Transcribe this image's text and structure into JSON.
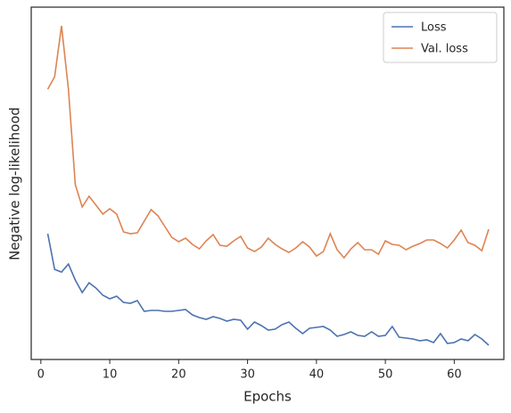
{
  "chart_data": {
    "type": "line",
    "xlabel": "Epochs",
    "ylabel": "Negative log-likelihood",
    "x": [
      1,
      2,
      3,
      4,
      5,
      6,
      7,
      8,
      9,
      10,
      11,
      12,
      13,
      14,
      15,
      16,
      17,
      18,
      19,
      20,
      21,
      22,
      23,
      24,
      25,
      26,
      27,
      28,
      29,
      30,
      31,
      32,
      33,
      34,
      35,
      36,
      37,
      38,
      39,
      40,
      41,
      42,
      43,
      44,
      45,
      46,
      47,
      48,
      49,
      50,
      51,
      52,
      53,
      54,
      55,
      56,
      57,
      58,
      59,
      60,
      61,
      62,
      63,
      64,
      65
    ],
    "series": [
      {
        "name": "Loss",
        "color": "#4c72b0",
        "values": [
          141,
          101,
          98,
          107,
          89,
          75,
          86,
          80,
          72,
          68,
          71,
          64,
          63,
          66,
          54,
          55,
          55,
          54,
          54,
          55,
          56,
          50,
          47,
          45,
          48,
          46,
          43,
          45,
          44,
          34,
          42,
          38,
          33,
          34,
          39,
          42,
          35,
          29,
          35,
          36,
          37,
          33,
          26,
          28,
          31,
          27,
          26,
          31,
          26,
          27,
          37,
          25,
          24,
          23,
          21,
          22,
          19,
          29,
          18,
          19,
          23,
          21,
          28,
          23,
          16
        ]
      },
      {
        "name": "Val. loss",
        "color": "#dd8452",
        "values": [
          303,
          317,
          374,
          303,
          196,
          171,
          183,
          173,
          163,
          169,
          163,
          143,
          141,
          142,
          155,
          168,
          161,
          149,
          137,
          132,
          136,
          129,
          124,
          133,
          140,
          128,
          127,
          133,
          138,
          125,
          121,
          126,
          136,
          129,
          124,
          120,
          125,
          132,
          126,
          116,
          121,
          141,
          123,
          114,
          124,
          131,
          123,
          123,
          118,
          133,
          129,
          128,
          123,
          127,
          130,
          134,
          134,
          130,
          125,
          134,
          145,
          131,
          128,
          122,
          146
        ]
      }
    ],
    "xlim": [
      -1.4,
      67.2
    ],
    "xticks": [
      0,
      10,
      20,
      30,
      40,
      50,
      60
    ],
    "ylim": [
      0,
      395
    ],
    "legend": "upper right"
  }
}
